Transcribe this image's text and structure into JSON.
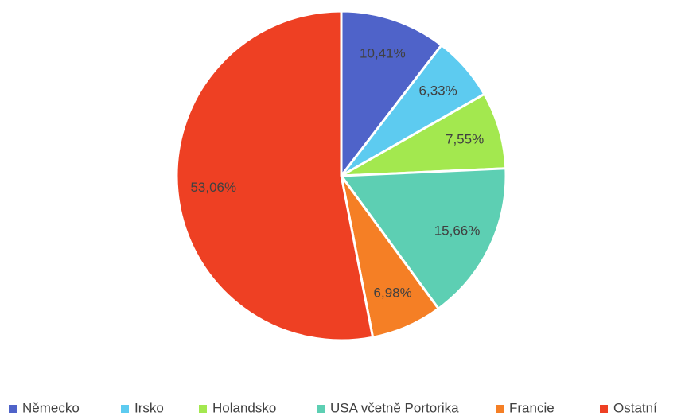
{
  "chart_data": {
    "type": "pie",
    "categories": [
      "Německo",
      "Irsko",
      "Holandsko",
      "USA včetně Portorika",
      "Francie",
      "Ostatní"
    ],
    "values": [
      10.41,
      6.33,
      7.55,
      15.66,
      6.98,
      53.06
    ],
    "value_labels": [
      "10,41%",
      "6,33%",
      "7,55%",
      "15,66%",
      "6,98%",
      "53,06%"
    ],
    "colors": [
      "#4f63c9",
      "#5dcbf0",
      "#a3e84f",
      "#5dcfb3",
      "#f57f25",
      "#ee4023"
    ],
    "legend": "bottom"
  }
}
